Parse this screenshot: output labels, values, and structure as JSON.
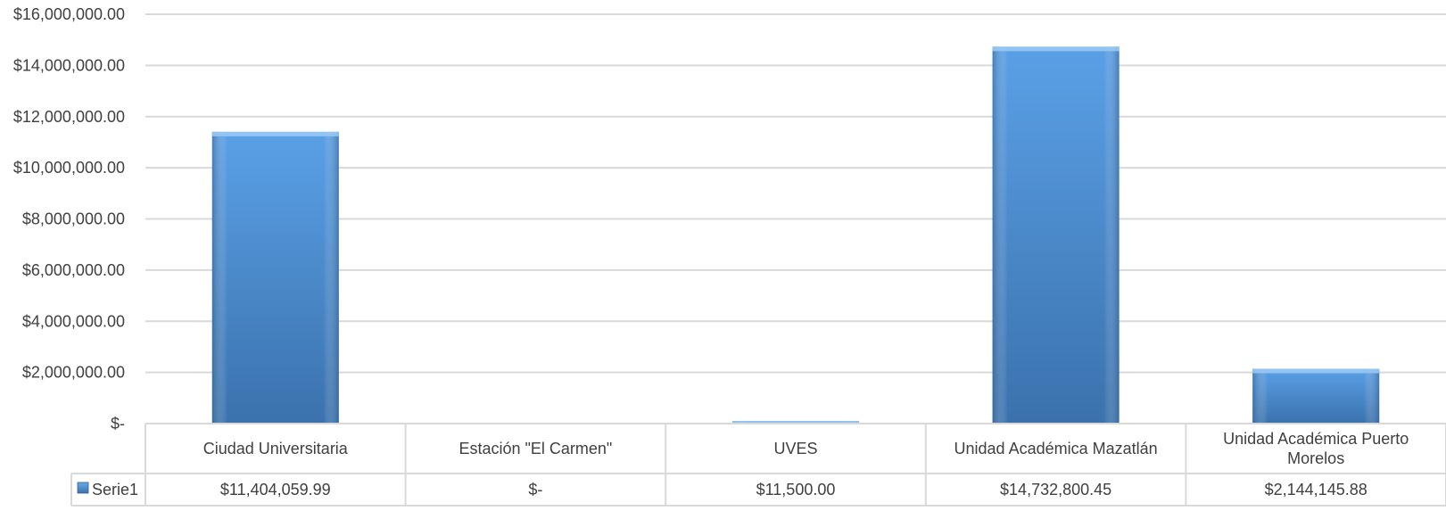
{
  "chart_data": {
    "type": "bar",
    "title": "",
    "xlabel": "",
    "ylabel": "",
    "categories": [
      [
        "Ciudad Universitaria"
      ],
      [
        "Estación  \"El Carmen\""
      ],
      [
        "UVES"
      ],
      [
        "Unidad Académica Mazatlán"
      ],
      [
        "Unidad Académica Puerto",
        "Morelos"
      ]
    ],
    "series": [
      {
        "name": "Serie1",
        "values": [
          11404059.99,
          0,
          11500.0,
          14732800.45,
          2144145.88
        ],
        "value_labels": [
          "$11,404,059.99",
          "$-",
          "$11,500.00",
          "$14,732,800.45",
          "$2,144,145.88"
        ]
      }
    ],
    "ylim": [
      0,
      16000000
    ],
    "yticks": [
      {
        "value": 0,
        "label": "$-"
      },
      {
        "value": 2000000,
        "label": "$2,000,000.00"
      },
      {
        "value": 4000000,
        "label": "$4,000,000.00"
      },
      {
        "value": 6000000,
        "label": "$6,000,000.00"
      },
      {
        "value": 8000000,
        "label": "$8,000,000.00"
      },
      {
        "value": 10000000,
        "label": "$10,000,000.00"
      },
      {
        "value": 12000000,
        "label": "$12,000,000.00"
      },
      {
        "value": 14000000,
        "label": "$14,000,000.00"
      },
      {
        "value": 16000000,
        "label": "$16,000,000.00"
      }
    ],
    "grid": true,
    "legend": "data-table",
    "colors": {
      "bar": "#4a8fd4",
      "bar_dark": "#3d77b3",
      "grid": "#d9d9d9",
      "table_border": "#d9d9d9"
    }
  }
}
